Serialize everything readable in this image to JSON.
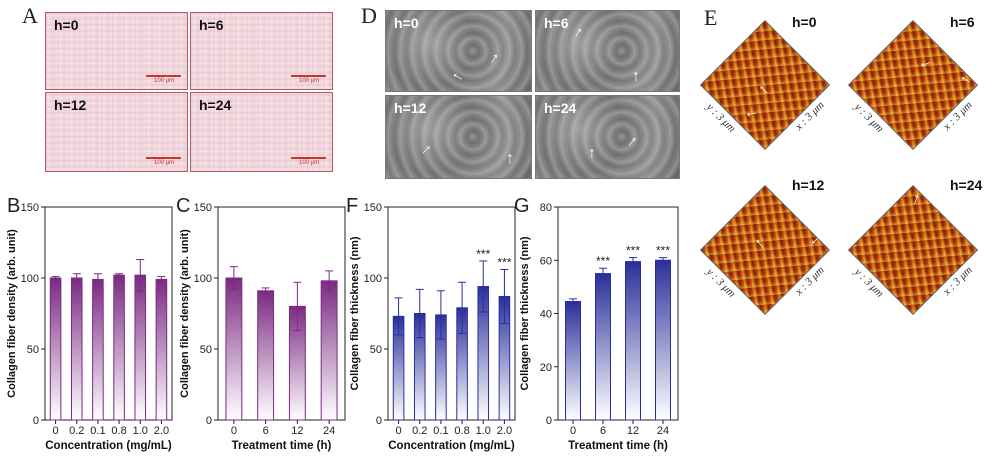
{
  "panels": {
    "A": {
      "label": "A",
      "tiles": [
        "h=0",
        "h=6",
        "h=12",
        "h=24"
      ],
      "scale": "100 μm"
    },
    "D": {
      "label": "D",
      "tiles": [
        "h=0",
        "h=6",
        "h=12",
        "h=24"
      ]
    },
    "E": {
      "label": "E",
      "tiles": [
        "h=0",
        "h=6",
        "h=12",
        "h=24"
      ],
      "x_axis": "x : 3 μm",
      "y_axis": "y : 3 μm"
    }
  },
  "chart_data": [
    {
      "id": "B",
      "panel_label": "B",
      "type": "bar",
      "categories": [
        "0",
        "0.2",
        "0.1",
        "0.8",
        "1.0",
        "2.0"
      ],
      "values": [
        100,
        100,
        99,
        102,
        102,
        99
      ],
      "errors": [
        1,
        3,
        4,
        1,
        11,
        2
      ],
      "ylabel": "Collagen fiber density (arb. unit)",
      "xlabel": "Concentration (mg/mL)",
      "ylim": [
        0,
        150
      ],
      "yticks": [
        "0",
        "50",
        "100",
        "150"
      ],
      "color": "#7b2a83",
      "annotations": []
    },
    {
      "id": "C",
      "panel_label": "C",
      "type": "bar",
      "categories": [
        "0",
        "6",
        "12",
        "24"
      ],
      "values": [
        100,
        91,
        80,
        98
      ],
      "errors": [
        8,
        2,
        17,
        7
      ],
      "ylabel": "Collagen fiber density (arb. unit)",
      "xlabel": "Treatment time (h)",
      "ylim": [
        0,
        150
      ],
      "yticks": [
        "0",
        "50",
        "100",
        "150"
      ],
      "color": "#7b2a83",
      "annotations": []
    },
    {
      "id": "F",
      "panel_label": "F",
      "type": "bar",
      "categories": [
        "0",
        "0.2",
        "0.1",
        "0.8",
        "1.0",
        "2.0"
      ],
      "values": [
        73,
        75,
        74,
        79,
        94,
        87
      ],
      "errors": [
        13,
        17,
        17,
        18,
        18,
        19
      ],
      "ylabel": "Collagen fiber thickness (nm)",
      "xlabel": "Concentration (mg/mL)",
      "ylim": [
        0,
        150
      ],
      "yticks": [
        "0",
        "50",
        "100",
        "150"
      ],
      "color": "#2a2f9a",
      "annotations": [
        "",
        "",
        "",
        "",
        "***",
        "***"
      ]
    },
    {
      "id": "G",
      "panel_label": "G",
      "type": "bar",
      "categories": [
        "0",
        "6",
        "12",
        "24"
      ],
      "values": [
        44.5,
        55,
        59.5,
        60
      ],
      "errors": [
        1,
        2,
        1.5,
        1
      ],
      "ylabel": "Collagen fiber thickness (nm)",
      "xlabel": "Treatment time (h)",
      "ylim": [
        0,
        80
      ],
      "yticks": [
        "0",
        "20",
        "40",
        "60",
        "80"
      ],
      "color": "#2a2f9a",
      "annotations": [
        "",
        "***",
        "***",
        "***"
      ]
    }
  ]
}
